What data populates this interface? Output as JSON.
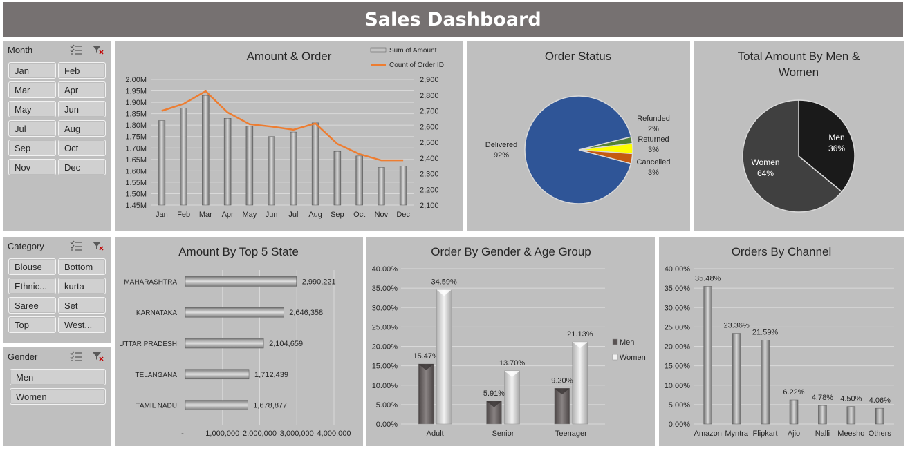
{
  "title": "Sales Dashboard",
  "slicers": {
    "month": {
      "label": "Month",
      "items": [
        "Jan",
        "Feb",
        "Mar",
        "Apr",
        "May",
        "Jun",
        "Jul",
        "Aug",
        "Sep",
        "Oct",
        "Nov",
        "Dec"
      ]
    },
    "category": {
      "label": "Category",
      "items": [
        "Blouse",
        "Bottom",
        "Ethnic...",
        "kurta",
        "Saree",
        "Set",
        "Top",
        "West..."
      ]
    },
    "gender": {
      "label": "Gender",
      "items": [
        "Men",
        "Women"
      ]
    }
  },
  "colors": {
    "header": "#767171",
    "panel": "#bfbfbf",
    "line": "#ed7d31",
    "delivered": "#2f5597",
    "men": "#1a1a1a",
    "women": "#404040"
  },
  "chart_data": [
    {
      "id": "amount_order",
      "type": "bar",
      "title": "Amount & Order",
      "categories": [
        "Jan",
        "Feb",
        "Mar",
        "Apr",
        "May",
        "Jun",
        "Jul",
        "Aug",
        "Sep",
        "Oct",
        "Nov",
        "Dec"
      ],
      "series": [
        {
          "name": "Sum of Amount",
          "type": "bar",
          "values": [
            1.82,
            1.875,
            1.93,
            1.83,
            1.795,
            1.75,
            1.77,
            1.81,
            1.685,
            1.665,
            1.615,
            1.62
          ]
        },
        {
          "name": "Count of Order ID",
          "type": "line",
          "values": [
            2700,
            2745,
            2825,
            2690,
            2615,
            2600,
            2580,
            2620,
            2490,
            2425,
            2385,
            2385
          ]
        }
      ],
      "ylim": [
        1.45,
        2.0
      ],
      "y_ticks": [
        "1.45M",
        "1.50M",
        "1.55M",
        "1.60M",
        "1.65M",
        "1.70M",
        "1.75M",
        "1.80M",
        "1.85M",
        "1.90M",
        "1.95M",
        "2.00M"
      ],
      "y2lim": [
        2100,
        2900
      ],
      "y2_ticks": [
        "2,100",
        "2,200",
        "2,300",
        "2,400",
        "2,500",
        "2,600",
        "2,700",
        "2,800",
        "2,900"
      ],
      "legend": "top-right"
    },
    {
      "id": "order_status",
      "type": "pie",
      "title": "Order Status",
      "slices": [
        {
          "label": "Delivered",
          "value": 92,
          "display": "92%",
          "color": "#2f5597"
        },
        {
          "label": "Refunded",
          "value": 2,
          "display": "2%",
          "color": "#548235"
        },
        {
          "label": "Returned",
          "value": 3,
          "display": "3%",
          "color": "#ffff00"
        },
        {
          "label": "Cancelled",
          "value": 3,
          "display": "3%",
          "color": "#c55a11"
        }
      ]
    },
    {
      "id": "gender_amount",
      "type": "pie",
      "title": "Total Amount By Men & Women",
      "slices": [
        {
          "label": "Men",
          "value": 36,
          "display": "36%",
          "color": "#1a1a1a"
        },
        {
          "label": "Women",
          "value": 64,
          "display": "64%",
          "color": "#404040"
        }
      ]
    },
    {
      "id": "top_states",
      "type": "bar",
      "orientation": "horizontal",
      "title": "Amount By Top 5 State",
      "categories": [
        "MAHARASHTRA",
        "KARNATAKA",
        "UTTAR PRADESH",
        "TELANGANA",
        "TAMIL NADU"
      ],
      "values": [
        2990221,
        2646358,
        2104659,
        1712439,
        1678877
      ],
      "labels": [
        "2,990,221",
        "2,646,358",
        "2,104,659",
        "1,712,439",
        "1,678,877"
      ],
      "xlim": [
        0,
        4000000
      ],
      "x_ticks": [
        "-",
        "1,000,000",
        "2,000,000",
        "3,000,000",
        "4,000,000"
      ]
    },
    {
      "id": "gender_age",
      "type": "bar",
      "title": "Order By Gender & Age Group",
      "categories": [
        "Adult",
        "Senior",
        "Teenager"
      ],
      "series": [
        {
          "name": "Men",
          "values": [
            15.47,
            5.91,
            9.2
          ],
          "labels": [
            "15.47%",
            "5.91%",
            "9.20%"
          ]
        },
        {
          "name": "Women",
          "values": [
            34.59,
            13.7,
            21.13
          ],
          "labels": [
            "34.59%",
            "13.70%",
            "21.13%"
          ]
        }
      ],
      "ylim": [
        0,
        40
      ],
      "y_ticks": [
        "0.00%",
        "5.00%",
        "10.00%",
        "15.00%",
        "20.00%",
        "25.00%",
        "30.00%",
        "35.00%",
        "40.00%"
      ],
      "legend": "right"
    },
    {
      "id": "channel",
      "type": "bar",
      "title": "Orders By Channel",
      "categories": [
        "Amazon",
        "Myntra",
        "Flipkart",
        "Ajio",
        "Nalli",
        "Meesho",
        "Others"
      ],
      "values": [
        35.48,
        23.36,
        21.59,
        6.22,
        4.78,
        4.5,
        4.06
      ],
      "labels": [
        "35.48%",
        "23.36%",
        "21.59%",
        "6.22%",
        "4.78%",
        "4.50%",
        "4.06%"
      ],
      "ylim": [
        0,
        40
      ],
      "y_ticks": [
        "0.00%",
        "5.00%",
        "10.00%",
        "15.00%",
        "20.00%",
        "25.00%",
        "30.00%",
        "35.00%",
        "40.00%"
      ]
    }
  ]
}
